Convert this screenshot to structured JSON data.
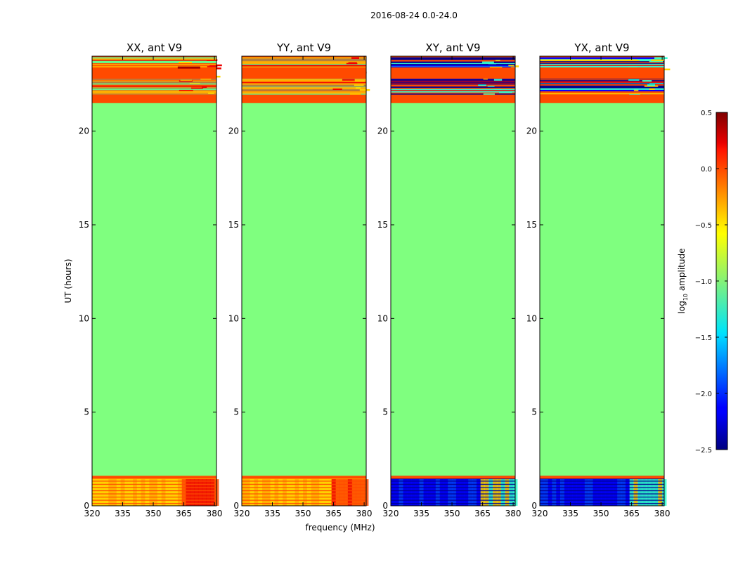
{
  "figure_title": "2016-08-24 0.0-24.0",
  "chart_data": {
    "type": "heatmap",
    "suptitle": "2016-08-24 0.0-24.0",
    "xlabel": "frequency (MHz)",
    "ylabel": "UT (hours)",
    "xlim": [
      320,
      381
    ],
    "ylim": [
      0,
      24
    ],
    "xticks": [
      320,
      335,
      350,
      365,
      380
    ],
    "yticks": [
      0,
      5,
      10,
      15,
      20
    ],
    "colorbar": {
      "label": "log10 amplitude",
      "label_base": "log",
      "label_sub": "10",
      "label_rest": " amplitude",
      "colormap": "jet",
      "range": [
        -2.5,
        0.5
      ],
      "ticks": [
        0.5,
        0.0,
        -0.5,
        -1.0,
        -1.5,
        -2.0,
        -2.5
      ],
      "tick_labels": [
        "0.5",
        "0.0",
        "−0.5",
        "−1.0",
        "−1.5",
        "−2.0",
        "−2.5"
      ]
    },
    "panels": [
      {
        "title": "XX, ant V9",
        "background_value": -0.9,
        "regions": [
          {
            "band": "lower",
            "ut_range": [
              0,
              1.5
            ],
            "freq_range": [
              320,
              381
            ],
            "value": -0.3,
            "note": "yellow-orange"
          },
          {
            "band": "lower",
            "ut_range": [
              0,
              1.5
            ],
            "freq_range": [
              363,
              381
            ],
            "value": 0.1,
            "note": "orange-red streaks"
          },
          {
            "band": "flagged",
            "ut_range": [
              1.5,
              21.5
            ],
            "freq_range": [
              320,
              381
            ],
            "value": -0.9,
            "note": "uniform green"
          },
          {
            "band": "upper",
            "ut_range": [
              21.5,
              24
            ],
            "freq_range": [
              320,
              381
            ],
            "value": 0.05,
            "note": "orange-red"
          }
        ]
      },
      {
        "title": "YY, ant V9",
        "background_value": -0.9,
        "regions": [
          {
            "band": "lower",
            "ut_range": [
              0,
              1.5
            ],
            "freq_range": [
              320,
              381
            ],
            "value": -0.3,
            "note": "yellow-orange"
          },
          {
            "band": "lower",
            "ut_range": [
              0,
              1.5
            ],
            "freq_range": [
              363,
              381
            ],
            "value": 0.05,
            "note": "orange-red streaks"
          },
          {
            "band": "flagged",
            "ut_range": [
              1.5,
              21.5
            ],
            "freq_range": [
              320,
              381
            ],
            "value": -0.9,
            "note": "uniform green"
          },
          {
            "band": "upper",
            "ut_range": [
              21.5,
              24
            ],
            "freq_range": [
              320,
              381
            ],
            "value": 0.05,
            "note": "orange-red"
          }
        ]
      },
      {
        "title": "XY, ant V9",
        "background_value": -0.9,
        "regions": [
          {
            "band": "lower",
            "ut_range": [
              0,
              1.5
            ],
            "freq_range": [
              320,
              381
            ],
            "value": -2.2,
            "note": "blue"
          },
          {
            "band": "lower",
            "ut_range": [
              0,
              1.5
            ],
            "freq_range": [
              363,
              381
            ],
            "value": -1.2,
            "note": "cyan-yellow streaks"
          },
          {
            "band": "flagged",
            "ut_range": [
              1.5,
              21.5
            ],
            "freq_range": [
              320,
              381
            ],
            "value": -0.9,
            "note": "uniform green"
          },
          {
            "band": "upper",
            "ut_range": [
              21.5,
              24
            ],
            "freq_range": [
              320,
              381
            ],
            "value": 0.0,
            "note": "mixed orange and blue lines"
          }
        ]
      },
      {
        "title": "YX, ant V9",
        "background_value": -0.9,
        "regions": [
          {
            "band": "lower",
            "ut_range": [
              0,
              1.5
            ],
            "freq_range": [
              320,
              381
            ],
            "value": -2.2,
            "note": "blue"
          },
          {
            "band": "lower",
            "ut_range": [
              0,
              1.5
            ],
            "freq_range": [
              363,
              381
            ],
            "value": -1.2,
            "note": "cyan-yellow streaks"
          },
          {
            "band": "flagged",
            "ut_range": [
              1.5,
              21.5
            ],
            "freq_range": [
              320,
              381
            ],
            "value": -0.9,
            "note": "uniform green"
          },
          {
            "band": "upper",
            "ut_range": [
              21.5,
              24
            ],
            "freq_range": [
              320,
              381
            ],
            "value": 0.0,
            "note": "mixed orange and blue lines"
          }
        ]
      }
    ]
  },
  "colors": {
    "flag_green": "#7fff7f",
    "orange": "#ff4a00",
    "red": "#ee0000",
    "dark_red": "#a00000",
    "yellow": "#ffd700",
    "yellow_orange": "#ffb000",
    "blue": "#0000ff",
    "dark_blue": "#000090",
    "mid_blue": "#0040ff",
    "cyan": "#30ffd0",
    "green_line": "#60ff90",
    "line_tan": "#b08040"
  }
}
